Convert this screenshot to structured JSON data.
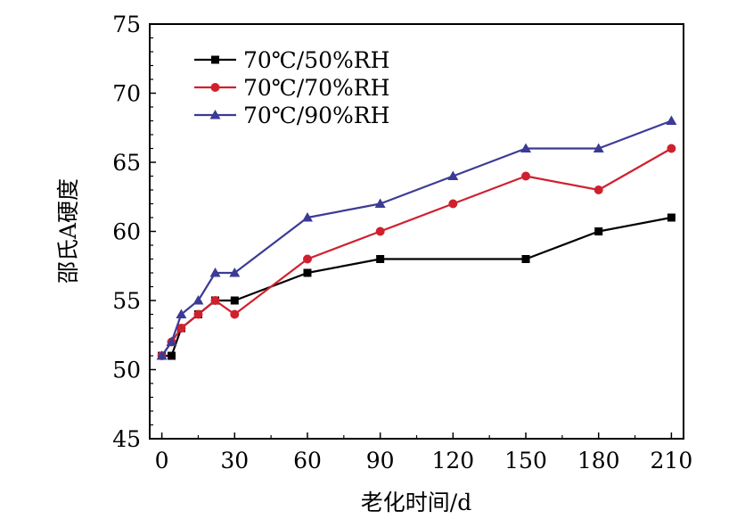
{
  "chart_data": {
    "type": "line",
    "xlabel": "老化时间/d",
    "ylabel": "邵氏A硬度",
    "xlim": [
      -5,
      215
    ],
    "ylim": [
      45,
      75
    ],
    "xticks": [
      0,
      30,
      60,
      90,
      120,
      150,
      180,
      210
    ],
    "yticks": [
      45,
      50,
      55,
      60,
      65,
      70,
      75
    ],
    "grid": false,
    "legend_position": "top-left",
    "series": [
      {
        "name": "70℃/50%RH",
        "color": "#000000",
        "marker": "square",
        "x": [
          0,
          4,
          8,
          15,
          22,
          30,
          60,
          90,
          150,
          180,
          210
        ],
        "y": [
          51,
          51,
          53,
          54,
          55,
          55,
          57,
          58,
          58,
          60,
          61
        ]
      },
      {
        "name": "70℃/70%RH",
        "color": "#d0202e",
        "marker": "circle",
        "x": [
          0,
          4,
          8,
          15,
          22,
          30,
          60,
          90,
          120,
          150,
          180,
          210
        ],
        "y": [
          51,
          52,
          53,
          54,
          55,
          54,
          58,
          60,
          62,
          64,
          63,
          66
        ]
      },
      {
        "name": "70℃/90%RH",
        "color": "#3b3b96",
        "marker": "triangle",
        "x": [
          0,
          4,
          8,
          15,
          22,
          30,
          60,
          90,
          120,
          150,
          180,
          210
        ],
        "y": [
          51,
          52,
          54,
          55,
          57,
          57,
          61,
          62,
          64,
          66,
          66,
          68
        ]
      }
    ]
  }
}
